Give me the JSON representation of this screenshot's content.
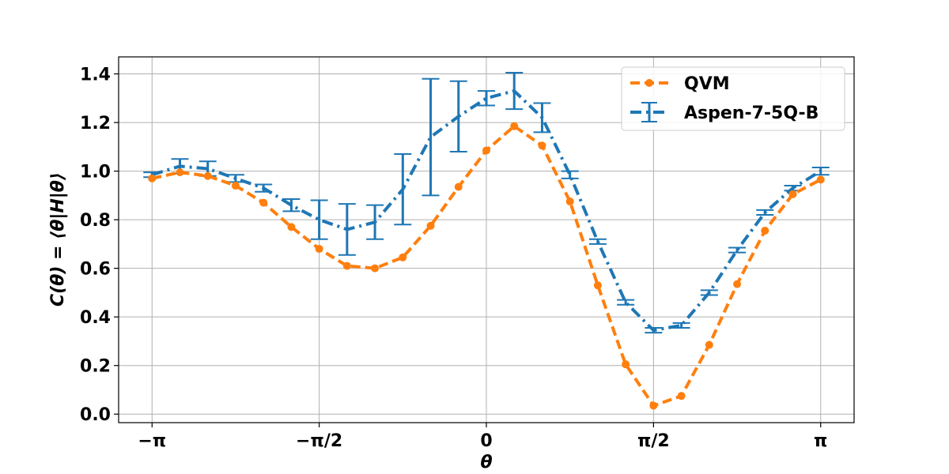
{
  "chart_data": {
    "type": "line",
    "xlabel": "θ",
    "ylabel": "C(θ) = ⟨θ|H|θ⟩",
    "xlim": [
      -3.4557,
      3.4557
    ],
    "ylim": [
      -0.035,
      1.47
    ],
    "x_ticks": [
      {
        "value": -3.14159,
        "label": "−π"
      },
      {
        "value": -1.5708,
        "label": "−π/2"
      },
      {
        "value": 0,
        "label": "0"
      },
      {
        "value": 1.5708,
        "label": "π/2"
      },
      {
        "value": 3.14159,
        "label": "π"
      }
    ],
    "y_ticks": [
      {
        "value": 0.0,
        "label": "0.0"
      },
      {
        "value": 0.2,
        "label": "0.2"
      },
      {
        "value": 0.4,
        "label": "0.4"
      },
      {
        "value": 0.6,
        "label": "0.6"
      },
      {
        "value": 0.8,
        "label": "0.8"
      },
      {
        "value": 1.0,
        "label": "1.0"
      },
      {
        "value": 1.2,
        "label": "1.2"
      },
      {
        "value": 1.4,
        "label": "1.4"
      }
    ],
    "grid": true,
    "legend_position": "top-right",
    "series": [
      {
        "name": "QVM",
        "color": "#ff7f0e",
        "style": "dashed",
        "marker": "circle",
        "x": [
          -3.1416,
          -2.8798,
          -2.618,
          -2.3562,
          -2.0944,
          -1.8326,
          -1.5708,
          -1.309,
          -1.0472,
          -0.7854,
          -0.5236,
          -0.2618,
          0.0,
          0.2618,
          0.5236,
          0.7854,
          1.0472,
          1.309,
          1.5708,
          1.8326,
          2.0944,
          2.3562,
          2.618,
          2.8798,
          3.1416
        ],
        "y": [
          0.97,
          0.995,
          0.98,
          0.94,
          0.87,
          0.77,
          0.68,
          0.61,
          0.6,
          0.645,
          0.775,
          0.935,
          1.085,
          1.185,
          1.105,
          0.875,
          0.53,
          0.205,
          0.035,
          0.075,
          0.285,
          0.535,
          0.755,
          0.905,
          0.965
        ]
      },
      {
        "name": "Aspen-7-5Q-B",
        "color": "#1f77b4",
        "style": "dashdot",
        "marker": "errorbar",
        "x": [
          -3.1416,
          -2.8798,
          -2.618,
          -2.3562,
          -2.0944,
          -1.8326,
          -1.5708,
          -1.309,
          -1.0472,
          -0.7854,
          -0.5236,
          -0.2618,
          0.0,
          0.2618,
          0.5236,
          0.7854,
          1.0472,
          1.309,
          1.5708,
          1.8326,
          2.0944,
          2.3562,
          2.618,
          2.8798,
          3.1416
        ],
        "y": [
          0.985,
          1.02,
          1.01,
          0.97,
          0.93,
          0.86,
          0.8,
          0.76,
          0.79,
          0.925,
          1.14,
          1.225,
          1.3,
          1.33,
          1.22,
          0.985,
          0.71,
          0.46,
          0.345,
          0.365,
          0.5,
          0.675,
          0.83,
          0.93,
          1.0
        ],
        "err": [
          0.01,
          0.03,
          0.03,
          0.015,
          0.015,
          0.025,
          0.08,
          0.105,
          0.07,
          0.145,
          0.24,
          0.145,
          0.03,
          0.075,
          0.06,
          0.015,
          0.01,
          0.01,
          0.01,
          0.01,
          0.01,
          0.01,
          0.01,
          0.01,
          0.015
        ]
      }
    ]
  }
}
